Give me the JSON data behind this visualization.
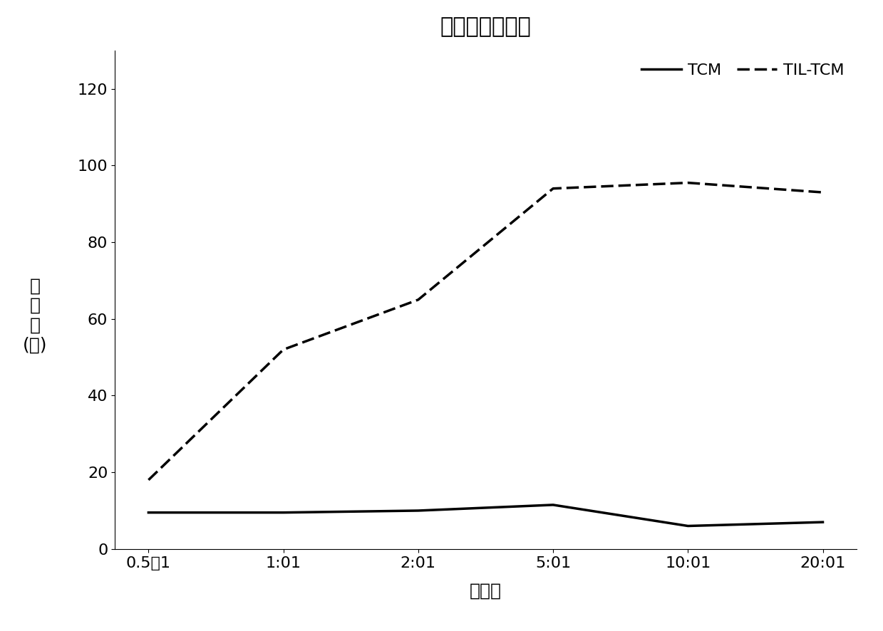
{
  "title": "乳腺癌体外杀伤",
  "xlabel": "效靶比",
  "ylabel_chars": [
    "杀",
    "伤",
    "率",
    "(％)"
  ],
  "x_labels": [
    "0.5：1",
    "1:01",
    "2:01",
    "5:01",
    "10:01",
    "20:01"
  ],
  "x_values": [
    0,
    1,
    2,
    3,
    4,
    5
  ],
  "tcm_values": [
    9.5,
    9.5,
    10.0,
    11.5,
    6.0,
    7.0
  ],
  "til_tcm_values": [
    18.0,
    52.0,
    65.0,
    94.0,
    95.5,
    93.0
  ],
  "ylim": [
    0,
    130
  ],
  "yticks": [
    0,
    20,
    40,
    60,
    80,
    100,
    120
  ],
  "legend_labels": [
    "TCM",
    "TIL-TCM"
  ],
  "line_color": "#000000",
  "background_color": "#ffffff",
  "title_fontsize": 22,
  "label_fontsize": 18,
  "tick_fontsize": 16,
  "legend_fontsize": 16
}
